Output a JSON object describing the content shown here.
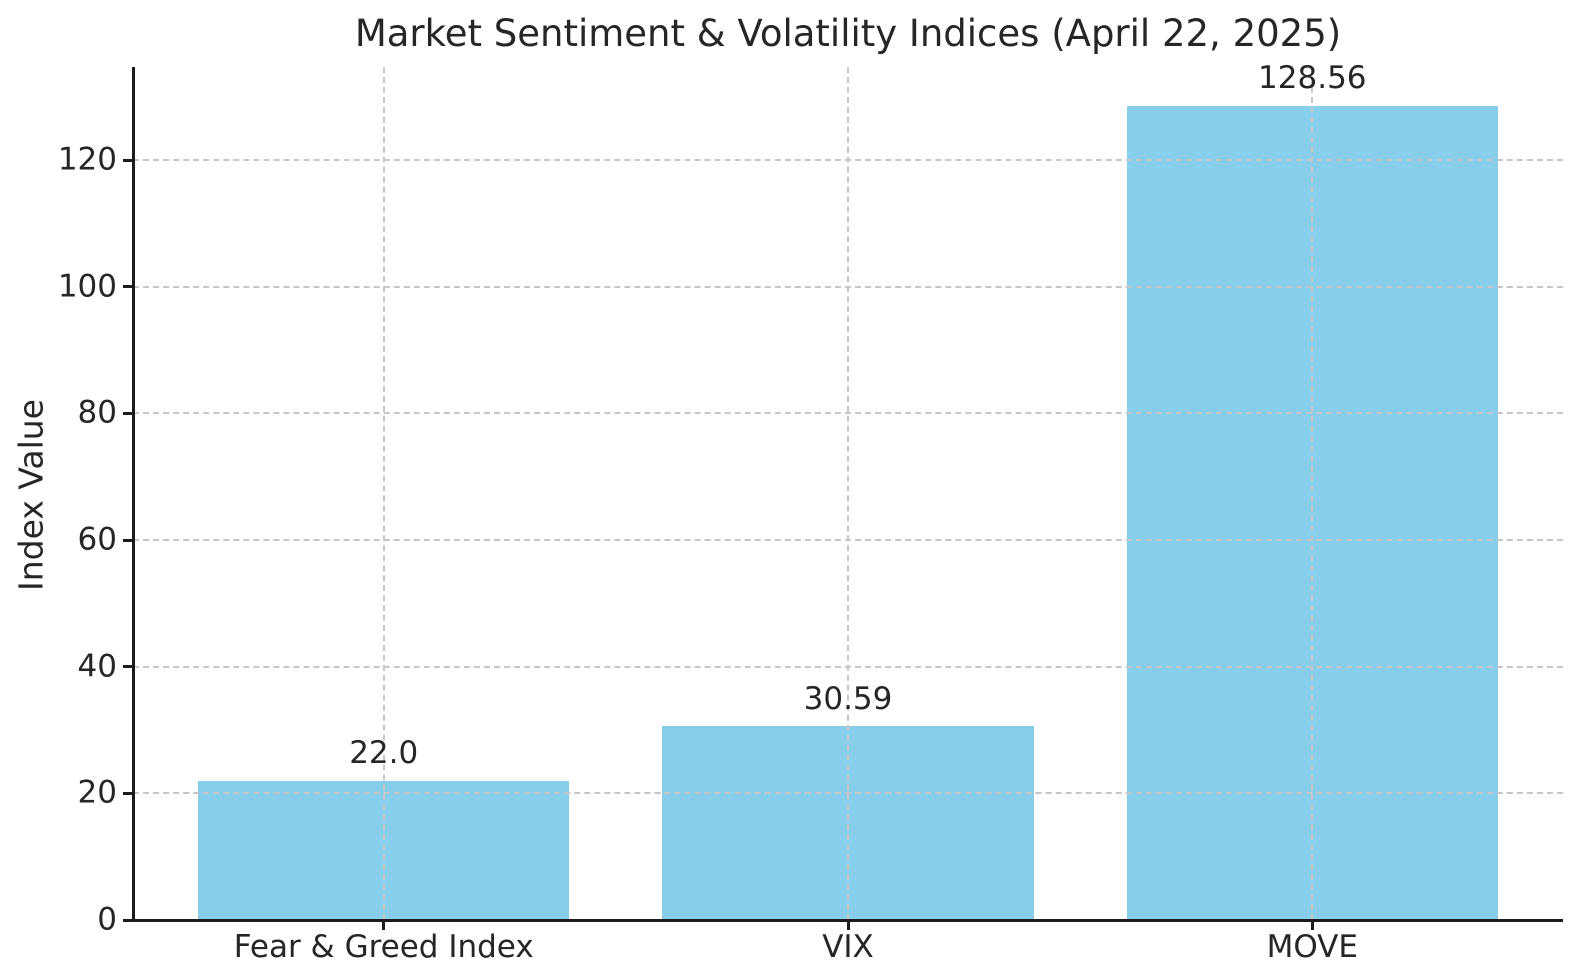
{
  "chart_data": {
    "type": "bar",
    "title": "Market Sentiment & Volatility Indices (April 22, 2025)",
    "ylabel": "Index Value",
    "xlabel": "",
    "categories": [
      "Fear & Greed Index",
      "VIX",
      "MOVE"
    ],
    "values": [
      22.0,
      30.59,
      128.56
    ],
    "value_labels": [
      "22.0",
      "30.59",
      "128.56"
    ],
    "yticks": [
      0,
      20,
      40,
      60,
      80,
      100,
      120
    ],
    "ytick_labels": [
      "0",
      "20",
      "40",
      "60",
      "80",
      "100",
      "120"
    ],
    "ylim": [
      0,
      134.7
    ],
    "xlim": [
      -0.54,
      2.54
    ],
    "bar_width": 0.8,
    "grid": "both",
    "grid_linestyle": "dashed",
    "legend_position": "none",
    "colors": {
      "bar": "#87CEEB",
      "grid": "#c6c6c6",
      "axis": "#1c1c1c",
      "text": "#262626",
      "background": "#ffffff"
    }
  }
}
